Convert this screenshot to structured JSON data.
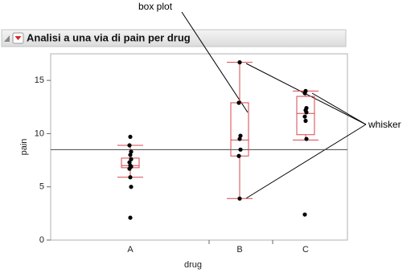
{
  "chart_data": {
    "type": "box",
    "title": "Analisi a una via di pain per drug",
    "x_label": "drug",
    "y_label": "pain",
    "categories": [
      "A",
      "B",
      "C"
    ],
    "groups": [
      {
        "points": [
          9.7,
          8.9,
          8.3,
          8.0,
          7.6,
          7.3,
          7.0,
          6.9,
          6.7,
          5.9,
          5.0,
          2.1
        ],
        "whisker_low": 5.9,
        "q1": 6.8,
        "median": 7.0,
        "q3": 7.7,
        "whisker_high": 8.9
      },
      {
        "points": [
          16.7,
          12.9,
          9.8,
          9.5,
          8.5,
          7.9,
          3.9
        ],
        "whisker_low": 3.9,
        "q1": 7.9,
        "median": 9.4,
        "q3": 12.9,
        "whisker_high": 16.7
      },
      {
        "points": [
          14.0,
          13.8,
          12.4,
          12.2,
          12.0,
          11.6,
          11.2,
          9.5,
          2.4
        ],
        "whisker_low": 9.4,
        "q1": 9.9,
        "median": 11.9,
        "q3": 13.5,
        "whisker_high": 14.0
      }
    ],
    "mean": 8.5,
    "box_color": "#d9444d",
    "point_color": "#000000",
    "ylim": [
      0,
      17.5
    ],
    "yticks": [
      0,
      5,
      10,
      15
    ],
    "annotations": [
      "box plot",
      "whisker"
    ]
  }
}
